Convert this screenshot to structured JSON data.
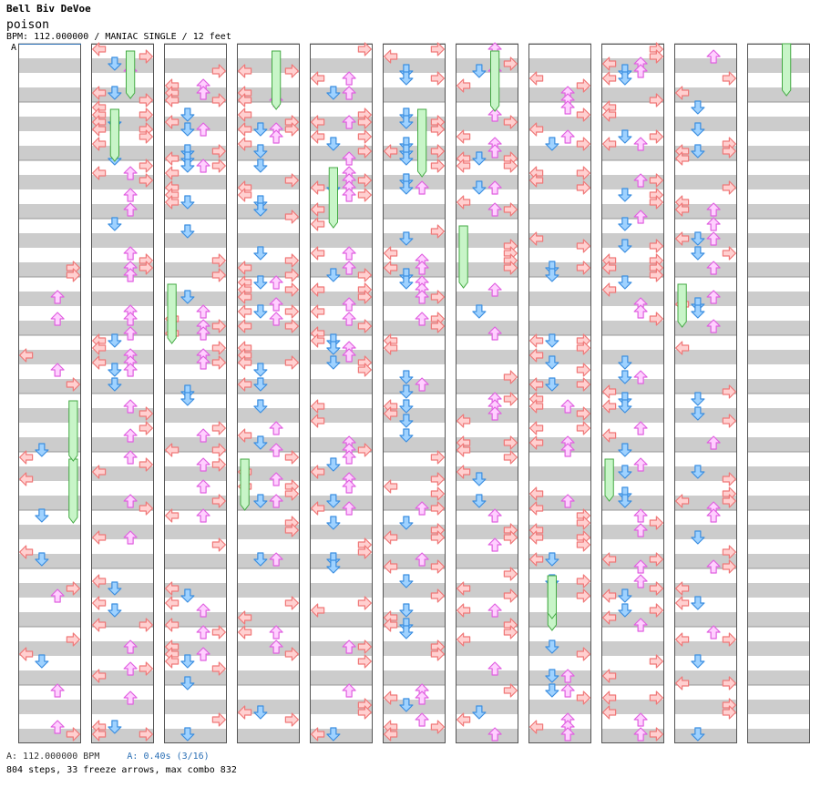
{
  "song": {
    "artist": "Bell Biv DeVoe",
    "title": "poison",
    "meta_line": "BPM: 112.000000 / MANIAC SINGLE / 12 feet"
  },
  "lane_marker": "A",
  "footer": {
    "bpm_line": "A: 112.000000 BPM",
    "speed_line": "A: 0.40s (3/16)",
    "stats_line": "804 steps, 33 freeze arrows, max combo 832"
  },
  "colors": {
    "stripe": "#cccccc",
    "panel_border": "#555555",
    "left_right_arrow": "#f07878",
    "left_right_arrow_fill": "#ffd0d0",
    "down_arrow": "#3b8ee0",
    "down_arrow_fill": "#9fd2ff",
    "up_arrow": "#e060e0",
    "up_arrow_fill": "#ffd0ff",
    "freeze": "#44aa44",
    "freeze_fill": "#c8f5c8",
    "accent": "#2a6fb5"
  },
  "chart_data": {
    "type": "table",
    "title": "poison",
    "columns": 11,
    "measures_per_column": 12,
    "lanes": [
      "left",
      "down",
      "up",
      "right"
    ],
    "total_steps": 804,
    "freeze_arrows": 33,
    "max_combo": 832,
    "bpm": 112.0,
    "difficulty": "MANIAC SINGLE",
    "feet": 12
  }
}
